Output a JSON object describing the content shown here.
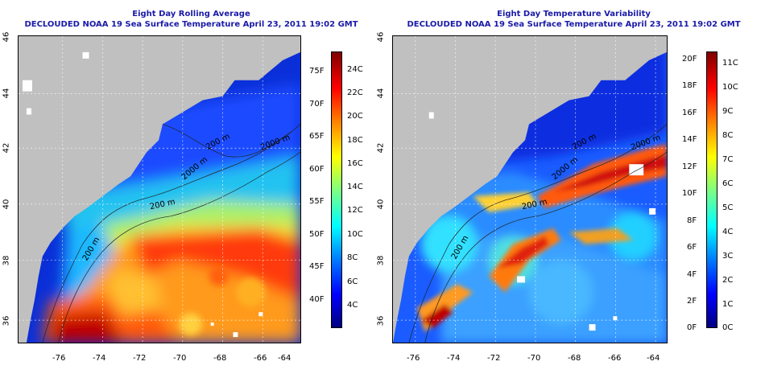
{
  "left": {
    "title": "Eight Day Rolling Average",
    "subtitle": "DECLOUDED NOAA 19 Sea Surface Temperature April 23, 2011 19:02 GMT",
    "x_ticks": [
      "-76",
      "-74",
      "-72",
      "-70",
      "-68",
      "-66",
      "-64"
    ],
    "y_ticks": [
      "36",
      "38",
      "40",
      "42",
      "44",
      "46"
    ],
    "colorbar_f": [
      "40F",
      "45F",
      "50F",
      "55F",
      "60F",
      "65F",
      "70F",
      "75F"
    ],
    "colorbar_c": [
      "4C",
      "6C",
      "8C",
      "10C",
      "12C",
      "14C",
      "16C",
      "18C",
      "20C",
      "22C",
      "24C"
    ],
    "contour_labels": [
      "200 m",
      "2000 m",
      "200 m",
      "200 m",
      "2000 m"
    ]
  },
  "right": {
    "title": "Eight Day Temperature Variability",
    "subtitle": "DECLOUDED NOAA 19 Sea Surface Temperature April 23, 2011 19:02 GMT",
    "x_ticks": [
      "-76",
      "-74",
      "-72",
      "-70",
      "-68",
      "-66",
      "-64"
    ],
    "y_ticks": [
      "36",
      "38",
      "40",
      "42",
      "44",
      "46"
    ],
    "colorbar_f": [
      "0F",
      "2F",
      "4F",
      "6F",
      "8F",
      "10F",
      "12F",
      "14F",
      "16F",
      "18F",
      "20F"
    ],
    "colorbar_c": [
      "0C",
      "1C",
      "2C",
      "3C",
      "4C",
      "5C",
      "6C",
      "7C",
      "8C",
      "9C",
      "10C",
      "11C"
    ],
    "contour_labels": [
      "200 m",
      "2000 m",
      "200 m",
      "200 m",
      "2000 m"
    ]
  },
  "colors": {
    "title": "#1a1aa8",
    "land": "#c0c0c0",
    "cloud": "#ffffff"
  }
}
